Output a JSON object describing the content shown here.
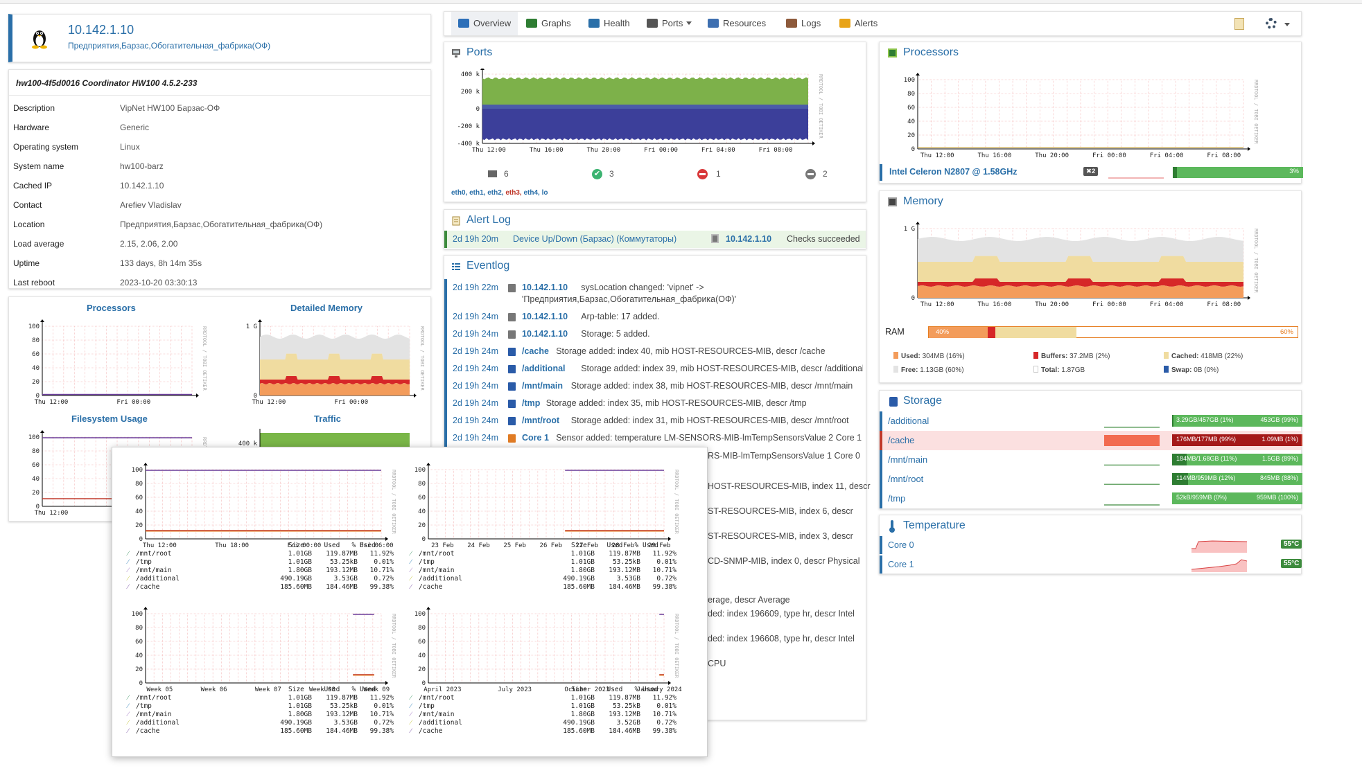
{
  "device": {
    "hostname": "10.142.1.10",
    "location_line": "Предприятия,Барзас,Обогатительная_фабрика(ОФ)"
  },
  "overview": {
    "heading": "hw100-4f5d0016 Coordinator HW100 4.5.2-233",
    "rows": [
      {
        "label": "Description",
        "value": "VipNet HW100 Барзас-ОФ"
      },
      {
        "label": "Hardware",
        "value": "Generic"
      },
      {
        "label": "Operating system",
        "value": "Linux"
      },
      {
        "label": "System name",
        "value": "hw100-barz"
      },
      {
        "label": "Cached IP",
        "value": "10.142.1.10"
      },
      {
        "label": "Contact",
        "value": "Arefiev Vladislav"
      },
      {
        "label": "Location",
        "value": "Предприятия,Барзас,Обогатительная_фабрика(ОФ)"
      },
      {
        "label": "Load average",
        "value": "2.15, 2.06, 2.00"
      },
      {
        "label": "Uptime",
        "value": "133 days, 8h 14m 35s"
      },
      {
        "label": "Last reboot",
        "value": "2023-10-20 03:30:13"
      }
    ]
  },
  "mini_graphs": {
    "processors_title": "Processors",
    "memory_title": "Detailed Memory",
    "filesystem_title": "Filesystem Usage",
    "traffic_title": "Traffic",
    "y_ticks": [
      "100",
      "80",
      "60",
      "40",
      "20",
      "0"
    ],
    "x_ticks": [
      "Thu 12:00",
      "Fri 00:00"
    ],
    "mem_y_ticks": [
      "1 G",
      "0"
    ],
    "traffic_tick": "400 k",
    "watermark": "RRDTOOL / TOBI OETIKER"
  },
  "nav": {
    "tabs": [
      {
        "label": "Overview",
        "icon": "overview-icon",
        "color": "#2d6fb8"
      },
      {
        "label": "Graphs",
        "icon": "graphs-icon",
        "color": "#2e7d32"
      },
      {
        "label": "Health",
        "icon": "health-icon",
        "color": "#2a6fa8"
      },
      {
        "label": "Ports",
        "icon": "ports-icon",
        "color": "#555555"
      },
      {
        "label": "Resources",
        "icon": "resources-icon",
        "color": "#3e6fb0"
      },
      {
        "label": "Logs",
        "icon": "logs-icon",
        "color": "#8d5a3b"
      },
      {
        "label": "Alerts",
        "icon": "alerts-icon",
        "color": "#e8a317"
      }
    ]
  },
  "ports": {
    "title": "Ports",
    "y_ticks": [
      "400 k",
      "200 k",
      "0",
      "-200 k",
      "-400 k"
    ],
    "x_ticks": [
      "Thu 12:00",
      "Thu 16:00",
      "Thu 20:00",
      "Fri 00:00",
      "Fri 04:00",
      "Fri 08:00"
    ],
    "counts": {
      "total": "6",
      "up": "3",
      "down": "1",
      "disabled": "2"
    },
    "interfaces": [
      "eth0",
      "eth1",
      "eth2",
      "eth3",
      "eth4",
      "lo"
    ],
    "watermark": "RRDTOOL / TOBI OETIKER"
  },
  "alert_log": {
    "title": "Alert Log",
    "entry": {
      "age": "2d 19h 20m",
      "alert": "Device Up/Down (Барзас) (Коммутаторы)",
      "entity": "10.142.1.10",
      "status": "Checks succeeded"
    }
  },
  "eventlog": {
    "title": "Eventlog",
    "entries": [
      {
        "time": "2d 19h 22m",
        "entity": "10.142.1.10",
        "text": "sysLocation changed: 'vipnet' ->"
      },
      {
        "time": "",
        "entity": "",
        "text": "'Предприятия,Барзас,Обогатительная_фабрика(ОФ)'"
      },
      {
        "time": "2d 19h 24m",
        "entity": "10.142.1.10",
        "text": "Arp-table: 17 added."
      },
      {
        "time": "2d 19h 24m",
        "entity": "10.142.1.10",
        "text": "Storage: 5 added."
      },
      {
        "time": "2d 19h 24m",
        "entity": "/cache",
        "text": "Storage added: index 40, mib HOST-RESOURCES-MIB, descr /cache"
      },
      {
        "time": "2d 19h 24m",
        "entity": "/additional",
        "text": "Storage added: index 39, mib HOST-RESOURCES-MIB, descr /additional"
      },
      {
        "time": "2d 19h 24m",
        "entity": "/mnt/main",
        "text": "Storage added: index 38, mib HOST-RESOURCES-MIB, descr /mnt/main"
      },
      {
        "time": "2d 19h 24m",
        "entity": "/tmp",
        "text": "Storage added: index 35, mib HOST-RESOURCES-MIB, descr /tmp"
      },
      {
        "time": "2d 19h 24m",
        "entity": "/mnt/root",
        "text": "Storage added: index 31, mib HOST-RESOURCES-MIB, descr /mnt/root"
      },
      {
        "time": "2d 19h 24m",
        "entity": "Core 1",
        "text": "Sensor added: temperature LM-SENSORS-MIB-lmTempSensorsValue 2 Core 1"
      }
    ],
    "fragments": [
      "RS-MIB-lmTempSensorsValue 1 Core 0",
      "HOST-RESOURCES-MIB, index 11, descr",
      "ST-RESOURCES-MIB, index 6, descr",
      "ST-RESOURCES-MIB, index 3, descr",
      "CD-SNMP-MIB, index 0, descr Physical",
      "erage, descr Average",
      "ded: index 196609, type hr, descr Intel",
      "ded: index 196608, type hr, descr Intel",
      "CPU"
    ]
  },
  "processors": {
    "title": "Processors",
    "y_ticks": [
      "100",
      "80",
      "60",
      "40",
      "20",
      "0"
    ],
    "x_ticks": [
      "Thu 12:00",
      "Thu 16:00",
      "Thu 20:00",
      "Fri 00:00",
      "Fri 04:00",
      "Fri 08:00"
    ],
    "cpu_name": "Intel Celeron N2807 @ 1.58GHz",
    "cpu_count": "✖2",
    "usage_label": "3%",
    "usage_pct": 3,
    "watermark": "RRDTOOL / TOBI OETIKER"
  },
  "memory": {
    "title": "Memory",
    "y_ticks": [
      "1 G",
      "0"
    ],
    "x_ticks": [
      "Thu 12:00",
      "Thu 16:00",
      "Thu 20:00",
      "Fri 00:00",
      "Fri 04:00",
      "Fri 08:00"
    ],
    "ram_label": "RAM",
    "used_pct_label": "40%",
    "free_pct_label": "60%",
    "used_pct": 16,
    "buffers_pct": 2,
    "cached_pct": 22,
    "legend": {
      "used": {
        "label": "Used:",
        "value": "304MB (16%)"
      },
      "buffers": {
        "label": "Buffers:",
        "value": "37.2MB (2%)"
      },
      "cached": {
        "label": "Cached:",
        "value": "418MB (22%)"
      },
      "free": {
        "label": "Free:",
        "value": "1.13GB (60%)"
      },
      "total": {
        "label": "Total:",
        "value": "1.87GB"
      },
      "swap": {
        "label": "Swap:",
        "value": "0B (0%)"
      }
    },
    "colors": {
      "used": "#f39c5b",
      "buffers": "#d62728",
      "cached": "#f0dca0",
      "free": "#ffffff"
    },
    "watermark": "RRDTOOL / TOBI OETIKER"
  },
  "storage": {
    "title": "Storage",
    "rows": [
      {
        "name": "/additional",
        "used": "3.29GB/457GB (1%)",
        "free": "453GB (99%)",
        "pct": 1,
        "alert": false
      },
      {
        "name": "/cache",
        "used": "176MB/177MB (99%)",
        "free": "1.09MB (1%)",
        "pct": 99,
        "alert": true
      },
      {
        "name": "/mnt/main",
        "used": "184MB/1.68GB (11%)",
        "free": "1.5GB (89%)",
        "pct": 11,
        "alert": false
      },
      {
        "name": "/mnt/root",
        "used": "114MB/959MB (12%)",
        "free": "845MB (88%)",
        "pct": 12,
        "alert": false
      },
      {
        "name": "/tmp",
        "used": "52kB/959MB (0%)",
        "free": "959MB (100%)",
        "pct": 0,
        "alert": false
      }
    ]
  },
  "temperature": {
    "title": "Temperature",
    "sensors": [
      {
        "name": "Core 0",
        "value": "55°C"
      },
      {
        "name": "Core 1",
        "value": "55°C"
      }
    ]
  },
  "popup": {
    "graphs": [
      {
        "x_ticks": [
          "Thu 12:00",
          "Thu 18:00",
          "Fri 00:00",
          "Fri 06:00"
        ]
      },
      {
        "x_ticks": [
          "23 Feb",
          "24 Feb",
          "25 Feb",
          "26 Feb",
          "27 Feb",
          "28 Feb",
          "29 Feb"
        ]
      },
      {
        "x_ticks": [
          "Week 05",
          "Week 06",
          "Week 07",
          "Week 08",
          "Week 09"
        ]
      },
      {
        "x_ticks": [
          "April 2023",
          "July 2023",
          "October 2023",
          "January 2024"
        ]
      }
    ],
    "y_ticks": [
      "100",
      "80",
      "60",
      "40",
      "20",
      "0"
    ],
    "table_header": "Size     Used   % Used",
    "table_rows": [
      {
        "name": "/mnt/root",
        "size": "1.01GB",
        "used": "119.87MB",
        "pct": "11.92%"
      },
      {
        "name": "/tmp",
        "size": "1.01GB",
        "used": "53.25kB",
        "pct": "0.01%"
      },
      {
        "name": "/mnt/main",
        "size": "1.80GB",
        "used": "193.12MB",
        "pct": "10.71%"
      },
      {
        "name": "/additional",
        "size": "490.19GB",
        "used": "3.53GB",
        "pct": "0.72%"
      },
      {
        "name": "/cache",
        "size": "185.60MB",
        "used": "184.46MB",
        "pct": "99.38%"
      }
    ],
    "table_rows_alt_additional_used": "3.52GB",
    "watermark": "RRDTOOL / TOBI OETIKER"
  }
}
